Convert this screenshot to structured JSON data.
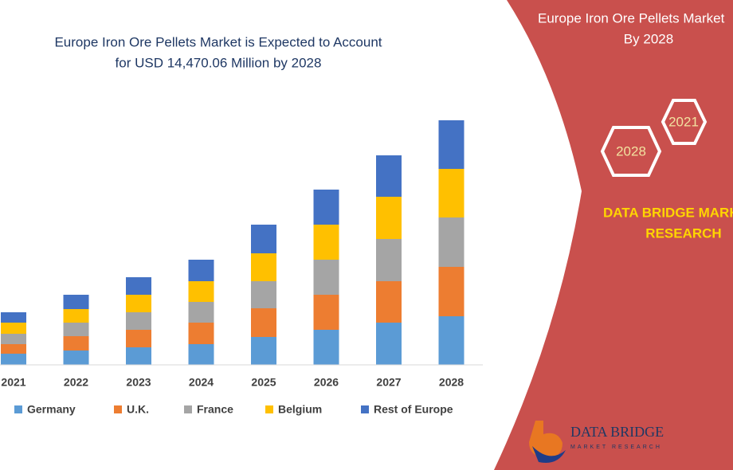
{
  "chart_data": {
    "type": "stacked_bar",
    "title": "Europe Iron Ore Pellets Market is Expected to Account",
    "subtitle": "for USD 14,470.06 Million by 2028",
    "categories": [
      "2021",
      "2022",
      "2023",
      "2024",
      "2025",
      "2026",
      "2027",
      "2028"
    ],
    "series": [
      {
        "name": "Germany",
        "color": "#5b9bd5",
        "values": [
          14,
          18,
          22,
          26,
          35,
          44,
          53,
          61
        ]
      },
      {
        "name": "U.K.",
        "color": "#ed7d31",
        "values": [
          12,
          18,
          22,
          27,
          36,
          44,
          52,
          62
        ]
      },
      {
        "name": "France",
        "color": "#a5a5a5",
        "values": [
          13,
          17,
          22,
          26,
          34,
          44,
          53,
          62
        ]
      },
      {
        "name": "Belgium",
        "color": "#ffc000",
        "values": [
          14,
          17,
          22,
          26,
          35,
          44,
          53,
          61
        ]
      },
      {
        "name": "Rest of Europe",
        "color": "#4472c4",
        "values": [
          13,
          18,
          22,
          27,
          36,
          44,
          52,
          61
        ]
      }
    ],
    "ylim": [
      0,
      310
    ],
    "legend": "bottom"
  },
  "panel": {
    "heading": [
      "Europe Iron Ore Pellets Market",
      "By 2028"
    ],
    "hexagons": [
      "2021",
      "2028"
    ],
    "brand": [
      "DATA BRIDGE MARKET",
      "RESEARCH"
    ],
    "logo": [
      "DATA BRIDGE",
      "MARKET RESEARCH"
    ]
  }
}
